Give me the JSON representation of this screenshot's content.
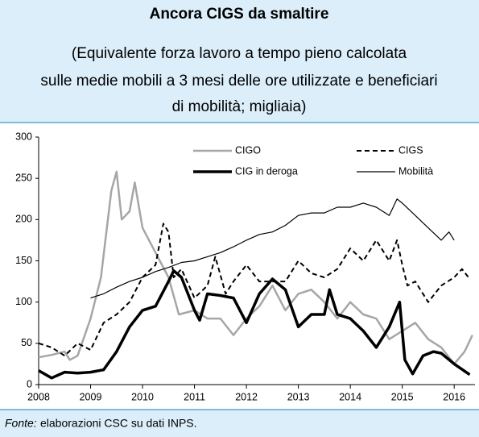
{
  "chart_data": {
    "type": "line",
    "title": "Ancora CIGS da smaltire",
    "subtitle": [
      "(Equivalente forza lavoro a tempo pieno calcolata",
      "sulle medie mobili a 3 mesi delle ore utilizzate e beneficiari",
      "di mobilità; migliaia)"
    ],
    "source_label": "Fonte:",
    "source": "elaborazioni CSC su dati INPS.",
    "xlim": [
      2008,
      2016.4
    ],
    "xticks": [
      2008,
      2009,
      2010,
      2011,
      2012,
      2013,
      2014,
      2015,
      2016
    ],
    "ylim": [
      0,
      300
    ],
    "yticks": [
      0,
      50,
      100,
      150,
      200,
      250,
      300
    ],
    "series": [
      {
        "name": "CIGO",
        "color": "#a6a6a6",
        "width": 2.5,
        "style": "solid",
        "x": [
          2008,
          2008.25,
          2008.5,
          2008.6,
          2008.75,
          2009,
          2009.2,
          2009.4,
          2009.5,
          2009.6,
          2009.75,
          2009.85,
          2010,
          2010.25,
          2010.5,
          2010.7,
          2011,
          2011.25,
          2011.5,
          2011.75,
          2012,
          2012.25,
          2012.5,
          2012.75,
          2013,
          2013.25,
          2013.5,
          2013.75,
          2014,
          2014.25,
          2014.5,
          2014.75,
          2015,
          2015.25,
          2015.5,
          2015.75,
          2016,
          2016.2,
          2016.35
        ],
        "values": [
          33,
          36,
          40,
          30,
          35,
          80,
          130,
          235,
          258,
          200,
          210,
          245,
          190,
          160,
          130,
          85,
          90,
          80,
          80,
          60,
          80,
          95,
          120,
          90,
          110,
          115,
          100,
          80,
          100,
          85,
          80,
          55,
          65,
          75,
          55,
          45,
          25,
          40,
          60
        ]
      },
      {
        "name": "CIGS",
        "color": "#000000",
        "width": 2,
        "style": "dashed",
        "x": [
          2008,
          2008.25,
          2008.5,
          2008.75,
          2009,
          2009.25,
          2009.5,
          2009.75,
          2010,
          2010.25,
          2010.4,
          2010.5,
          2010.6,
          2010.75,
          2011,
          2011.25,
          2011.4,
          2011.6,
          2011.75,
          2012,
          2012.25,
          2012.5,
          2012.75,
          2013,
          2013.25,
          2013.5,
          2013.75,
          2014,
          2014.25,
          2014.5,
          2014.75,
          2014.9,
          2015,
          2015.1,
          2015.25,
          2015.5,
          2015.75,
          2016,
          2016.15,
          2016.3
        ],
        "values": [
          50,
          45,
          35,
          50,
          42,
          75,
          85,
          100,
          130,
          145,
          195,
          185,
          130,
          140,
          105,
          120,
          155,
          110,
          125,
          145,
          125,
          125,
          125,
          150,
          135,
          130,
          140,
          165,
          150,
          175,
          150,
          175,
          145,
          120,
          125,
          100,
          120,
          130,
          140,
          128
        ]
      },
      {
        "name": "CIG in deroga",
        "color": "#000000",
        "width": 3.5,
        "style": "solid",
        "x": [
          2008,
          2008.25,
          2008.5,
          2008.75,
          2009,
          2009.25,
          2009.5,
          2009.75,
          2010,
          2010.25,
          2010.5,
          2010.6,
          2010.75,
          2011,
          2011.1,
          2011.25,
          2011.5,
          2011.75,
          2012,
          2012.25,
          2012.5,
          2012.75,
          2013,
          2013.25,
          2013.5,
          2013.6,
          2013.75,
          2014,
          2014.25,
          2014.5,
          2014.75,
          2014.95,
          2015.05,
          2015.2,
          2015.4,
          2015.6,
          2015.75,
          2016,
          2016.3
        ],
        "values": [
          17,
          8,
          15,
          14,
          15,
          18,
          40,
          70,
          90,
          95,
          125,
          138,
          130,
          90,
          78,
          110,
          108,
          105,
          75,
          110,
          128,
          115,
          70,
          85,
          85,
          115,
          85,
          80,
          65,
          45,
          70,
          100,
          30,
          13,
          35,
          40,
          38,
          25,
          12
        ]
      },
      {
        "name": "Mobilità",
        "color": "#000000",
        "width": 1.2,
        "style": "solid",
        "x": [
          2009,
          2009.25,
          2009.5,
          2009.75,
          2010,
          2010.25,
          2010.5,
          2010.75,
          2011,
          2011.25,
          2011.5,
          2011.75,
          2012,
          2012.25,
          2012.5,
          2012.75,
          2013,
          2013.25,
          2013.5,
          2013.75,
          2014,
          2014.25,
          2014.5,
          2014.75,
          2014.9,
          2015,
          2015.25,
          2015.5,
          2015.75,
          2015.9,
          2016
        ],
        "values": [
          105,
          110,
          118,
          125,
          130,
          137,
          142,
          148,
          150,
          155,
          160,
          167,
          175,
          182,
          185,
          193,
          205,
          208,
          208,
          215,
          215,
          220,
          215,
          205,
          225,
          220,
          205,
          190,
          175,
          185,
          175
        ]
      }
    ]
  }
}
